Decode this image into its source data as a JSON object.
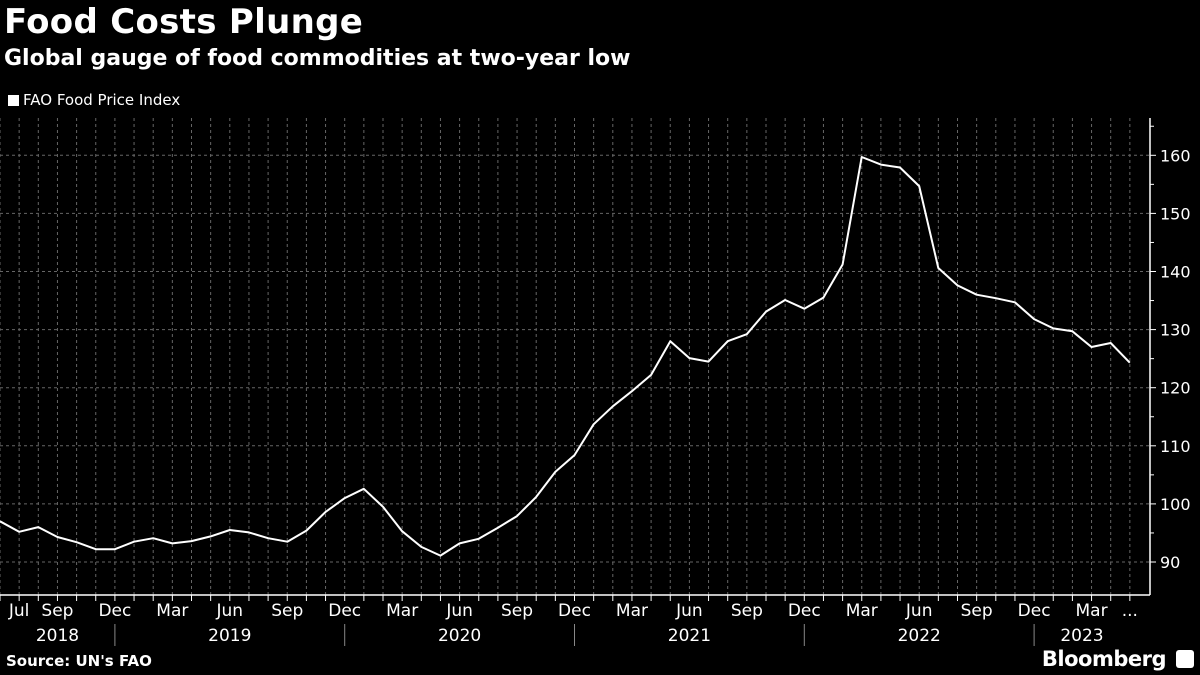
{
  "header": {
    "title": "Food Costs Plunge",
    "subtitle": "Global gauge of food commodities at two-year low"
  },
  "footer": {
    "source": "Source: UN's FAO",
    "brand": "Bloomberg"
  },
  "chart_data": {
    "type": "line",
    "title": "Food Costs Plunge",
    "subtitle": "Global gauge of food commodities at two-year low",
    "legend_position": "top-left",
    "grid": true,
    "colors": {
      "background": "#000000",
      "line": "#ffffff",
      "grid": "#666666"
    },
    "series": [
      {
        "name": "FAO Food Price Index",
        "start_month": "2018-06",
        "values": [
          97.0,
          95.2,
          96.0,
          94.3,
          93.4,
          92.2,
          92.2,
          93.5,
          94.1,
          93.2,
          93.6,
          94.4,
          95.5,
          95.1,
          94.1,
          93.5,
          95.4,
          98.6,
          101.0,
          102.6,
          99.5,
          95.3,
          92.6,
          91.1,
          93.2,
          94.0,
          95.9,
          97.9,
          101.2,
          105.5,
          108.4,
          113.7,
          116.8,
          119.4,
          122.2,
          128.0,
          125.1,
          124.5,
          128.0,
          129.2,
          133.1,
          135.1,
          133.6,
          135.5,
          141.2,
          159.7,
          158.4,
          157.9,
          154.7,
          140.6,
          137.6,
          136.0,
          135.4,
          134.7,
          131.8,
          130.2,
          129.7,
          127.0,
          127.7,
          124.3
        ]
      }
    ],
    "ylim": [
      84,
      166
    ],
    "y_ticks": [
      "90",
      "100",
      "110",
      "120",
      "130",
      "140",
      "150",
      "160"
    ],
    "x_month_labels": [
      {
        "month_index": 1,
        "label": "Jul"
      },
      {
        "month_index": 3,
        "label": "Sep"
      },
      {
        "month_index": 6,
        "label": "Dec"
      },
      {
        "month_index": 9,
        "label": "Mar"
      },
      {
        "month_index": 12,
        "label": "Jun"
      },
      {
        "month_index": 15,
        "label": "Sep"
      },
      {
        "month_index": 18,
        "label": "Dec"
      },
      {
        "month_index": 21,
        "label": "Mar"
      },
      {
        "month_index": 24,
        "label": "Jun"
      },
      {
        "month_index": 27,
        "label": "Sep"
      },
      {
        "month_index": 30,
        "label": "Dec"
      },
      {
        "month_index": 33,
        "label": "Mar"
      },
      {
        "month_index": 36,
        "label": "Jun"
      },
      {
        "month_index": 39,
        "label": "Sep"
      },
      {
        "month_index": 42,
        "label": "Dec"
      },
      {
        "month_index": 45,
        "label": "Mar"
      },
      {
        "month_index": 48,
        "label": "Jun"
      },
      {
        "month_index": 51,
        "label": "Sep"
      },
      {
        "month_index": 54,
        "label": "Dec"
      },
      {
        "month_index": 57,
        "label": "Mar"
      },
      {
        "month_index": 59,
        "label": "..."
      }
    ],
    "x_year_labels": [
      {
        "label": "2018",
        "from": 0,
        "to": 6
      },
      {
        "label": "2019",
        "from": 6,
        "to": 18
      },
      {
        "label": "2020",
        "from": 18,
        "to": 30
      },
      {
        "label": "2021",
        "from": 30,
        "to": 42
      },
      {
        "label": "2022",
        "from": 42,
        "to": 54
      },
      {
        "label": "2023",
        "from": 54,
        "to": 60
      }
    ]
  }
}
